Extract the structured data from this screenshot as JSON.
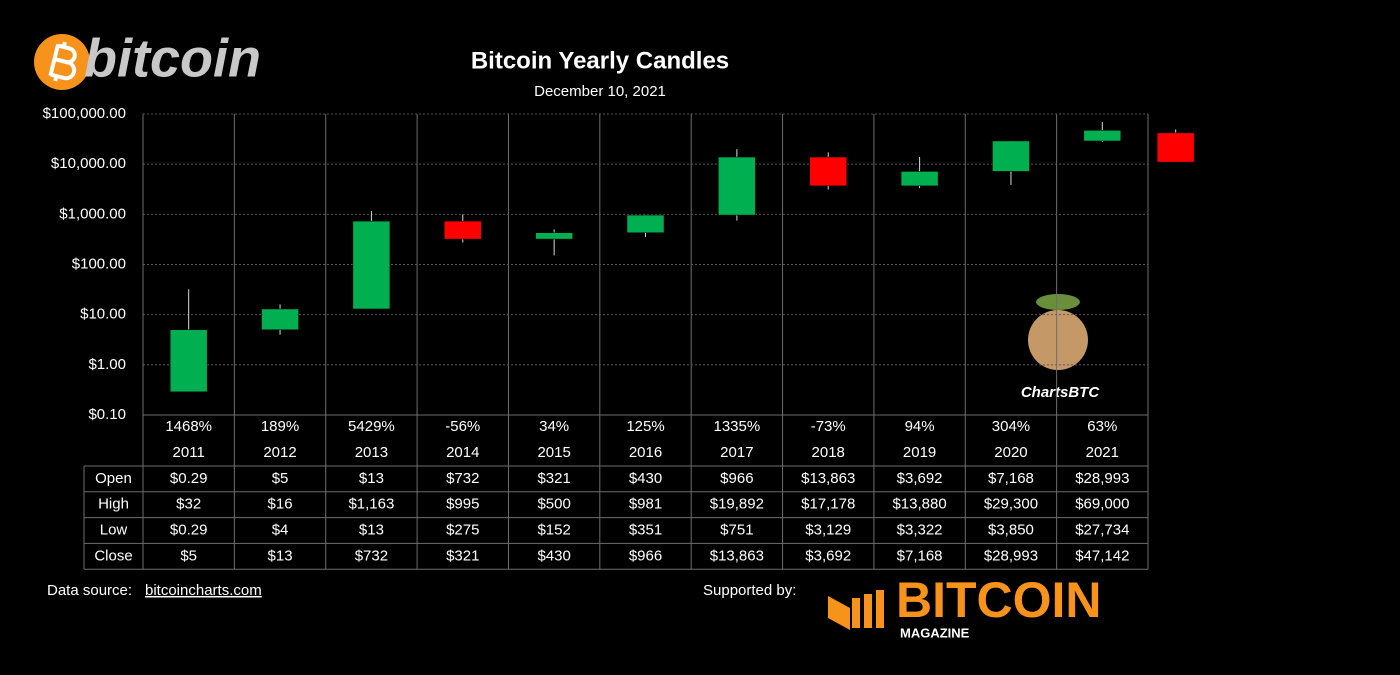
{
  "logo": "bitcoin",
  "watermark": "ChartsBTC",
  "footer": {
    "source_label": "Data source:",
    "source_link": "bitcoincharts.com",
    "supported_by": "Supported by:",
    "sponsor": "BITCOIN",
    "sponsor_sub": "MAGAZINE"
  },
  "chart_data": {
    "type": "candlestick",
    "title": "Bitcoin Yearly Candles",
    "subtitle": "December 10, 2021",
    "categories": [
      "2011",
      "2012",
      "2013",
      "2014",
      "2015",
      "2016",
      "2017",
      "2018",
      "2019",
      "2020",
      "2021",
      null
    ],
    "changes": [
      "1468%",
      "189%",
      "5429%",
      "-56%",
      "34%",
      "125%",
      "1335%",
      "-73%",
      "94%",
      "304%",
      "63%",
      null
    ],
    "series": [
      {
        "name": "Open",
        "values": [
          0.29,
          5,
          13,
          732,
          321,
          430,
          966,
          13863,
          3692,
          7168,
          28993,
          42000
        ],
        "value_labels": [
          "$0.29",
          "$5",
          "$13",
          "$732",
          "$321",
          "$430",
          "$966",
          "$13,863",
          "$3,692",
          "$7,168",
          "$28,993",
          null
        ]
      },
      {
        "name": "High",
        "values": [
          32,
          16,
          1163,
          995,
          500,
          981,
          19892,
          17178,
          13880,
          29300,
          69000,
          49000
        ],
        "value_labels": [
          "$32",
          "$16",
          "$1,163",
          "$995",
          "$500",
          "$981",
          "$19,892",
          "$17,178",
          "$13,880",
          "$29,300",
          "$69,000",
          null
        ]
      },
      {
        "name": "Low",
        "values": [
          0.29,
          4,
          13,
          275,
          152,
          351,
          751,
          3129,
          3322,
          3850,
          27734,
          11000
        ],
        "value_labels": [
          "$0.29",
          "$4",
          "$13",
          "$275",
          "$152",
          "$351",
          "$751",
          "$3,129",
          "$3,322",
          "$3,850",
          "$27,734",
          null
        ]
      },
      {
        "name": "Close",
        "values": [
          5,
          13,
          732,
          321,
          430,
          966,
          13863,
          3692,
          7168,
          28993,
          47142,
          11000
        ],
        "value_labels": [
          "$5",
          "$13",
          "$732",
          "$321",
          "$430",
          "$966",
          "$13,863",
          "$3,692",
          "$7,168",
          "$28,993",
          "$47,142",
          null
        ]
      }
    ],
    "up_color": "#00b050",
    "down_color": "#ff0000",
    "ylog": true,
    "grid": true,
    "ylim": [
      0.1,
      100000
    ],
    "yticks": [
      {
        "value": 0.1,
        "label": "$0.10"
      },
      {
        "value": 1,
        "label": "$1.00"
      },
      {
        "value": 10,
        "label": "$10.00"
      },
      {
        "value": 100,
        "label": "$100.00"
      },
      {
        "value": 1000,
        "label": "$1,000.00"
      },
      {
        "value": 10000,
        "label": "$10,000.00"
      },
      {
        "value": 100000,
        "label": "$100,000.00"
      }
    ]
  }
}
